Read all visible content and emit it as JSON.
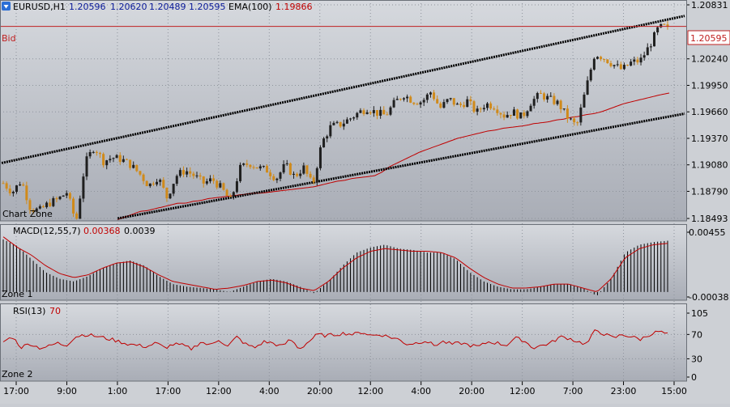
{
  "colors": {
    "panel_bg_top": "#d6d9de",
    "panel_bg_bottom": "#a9adb6",
    "grid": "#8e939c",
    "up_candle": "#1f1f1f",
    "down_candle": "#d08a1a",
    "ema": "#c00000",
    "channel": "#000000",
    "bid_line": "#c02020",
    "macd_bars": "#000000",
    "macd_signal": "#c00000",
    "rsi": "#c00000",
    "text": "#000000",
    "value_blue": "#0a1a9a",
    "value_red": "#c00000"
  },
  "header": {
    "symbol": "EURUSD,H1",
    "open": "1.20596",
    "high": "1.20620",
    "low": "1.20489",
    "close": "1.20595",
    "ema_label": "EMA(100)",
    "ema_value": "1.19866",
    "icon": "arrow-down-icon"
  },
  "bid": {
    "label": "Bid",
    "value": "1.20595",
    "price": 1.20595
  },
  "zones": {
    "main": "Chart Zone",
    "macd": "Zone 1",
    "rsi": "Zone 2"
  },
  "macd_header": {
    "label": "MACD(12,55,7)",
    "value1": "0.00368",
    "value2": "0.0039"
  },
  "rsi_header": {
    "label": "RSI(13)",
    "value": "70"
  },
  "chart_data": [
    {
      "type": "candlestick",
      "title": "EURUSD,H1",
      "ylim": [
        1.18493,
        1.20831
      ],
      "yticks": [
        "1.20831",
        "1.20240",
        "1.19950",
        "1.19660",
        "1.19370",
        "1.19080",
        "1.18790",
        "1.18493"
      ],
      "xticks": [
        "17:00",
        "9:00",
        "1:00",
        "17:00",
        "12:00",
        "4:00",
        "20:00",
        "12:00",
        "4:00",
        "20:00",
        "12:00",
        "7:00",
        "23:00",
        "15:00"
      ],
      "price_path": [
        1.1888,
        1.1878,
        1.1891,
        1.186,
        1.1858,
        1.1866,
        1.187,
        1.1878,
        1.1845,
        1.191,
        1.1928,
        1.1912,
        1.1916,
        1.1914,
        1.1908,
        1.1898,
        1.1885,
        1.1895,
        1.1872,
        1.1896,
        1.1902,
        1.1896,
        1.1888,
        1.1892,
        1.1882,
        1.1868,
        1.1904,
        1.191,
        1.1905,
        1.1902,
        1.1893,
        1.1908,
        1.1895,
        1.1905,
        1.1885,
        1.1932,
        1.195,
        1.1952,
        1.1958,
        1.1965,
        1.197,
        1.1965,
        1.1962,
        1.1976,
        1.1985,
        1.1978,
        1.1977,
        1.1988,
        1.197,
        1.198,
        1.1972,
        1.1978,
        1.1965,
        1.1975,
        1.1972,
        1.1962,
        1.1966,
        1.196,
        1.1977,
        1.1985,
        1.198,
        1.1975,
        1.196,
        1.195,
        1.199,
        1.203,
        1.2025,
        1.2018,
        1.2012,
        1.202,
        1.2022,
        1.2038,
        1.2058,
        1.20595
      ],
      "ema100": [
        1.1848,
        1.1851,
        1.1854,
        1.1857,
        1.1858,
        1.186,
        1.1862,
        1.1864,
        1.1866,
        1.1866,
        1.1868,
        1.1869,
        1.1871,
        1.1872,
        1.1873,
        1.1874,
        1.1875,
        1.1876,
        1.1877,
        1.1877,
        1.1878,
        1.1879,
        1.188,
        1.1881,
        1.1882,
        1.1883,
        1.1884,
        1.1886,
        1.1888,
        1.189,
        1.1891,
        1.1893,
        1.1894,
        1.1895,
        1.1896,
        1.19,
        1.1906,
        1.191,
        1.1914,
        1.1918,
        1.1922,
        1.1925,
        1.1928,
        1.1931,
        1.1934,
        1.1937,
        1.1939,
        1.1941,
        1.1943,
        1.1945,
        1.1946,
        1.1948,
        1.1949,
        1.195,
        1.1951,
        1.1953,
        1.1954,
        1.1955,
        1.1957,
        1.1958,
        1.196,
        1.1961,
        1.1963,
        1.1964,
        1.1966,
        1.1969,
        1.1972,
        1.1975,
        1.1977,
        1.1979,
        1.1981,
        1.1983,
        1.1985,
        1.19866
      ],
      "channel_upper": [
        [
          0,
          1.191
        ],
        [
          1,
          1.2071
        ]
      ],
      "channel_lower": [
        [
          0.17,
          1.18493
        ],
        [
          1,
          1.1964
        ]
      ]
    },
    {
      "type": "bar",
      "title": "MACD(12,55,7)",
      "ylim": [
        -0.00038,
        0.00455
      ],
      "yticks": [
        "0.00455",
        "-0.00038"
      ],
      "hist_path": [
        0.004,
        0.0035,
        0.0025,
        0.0015,
        0.001,
        0.0008,
        0.0012,
        0.0018,
        0.0022,
        0.0024,
        0.002,
        0.0012,
        0.0006,
        0.0004,
        0.0003,
        0.0002,
        0.0,
        0.0004,
        0.0008,
        0.001,
        0.0008,
        0.0004,
        -0.0001,
        0.0008,
        0.002,
        0.003,
        0.0034,
        0.0036,
        0.0033,
        0.0032,
        0.003,
        0.003,
        0.0025,
        0.0015,
        0.0008,
        0.0004,
        0.0002,
        0.0002,
        0.0004,
        0.0006,
        0.0006,
        0.0003,
        -0.0003,
        0.001,
        0.003,
        0.0036,
        0.0038,
        0.0039
      ],
      "signal_path": [
        0.0042,
        0.0034,
        0.0028,
        0.002,
        0.0014,
        0.0011,
        0.0013,
        0.0018,
        0.0022,
        0.0023,
        0.0019,
        0.0013,
        0.0008,
        0.0006,
        0.0004,
        0.0002,
        0.0003,
        0.0005,
        0.0008,
        0.0009,
        0.0007,
        0.0003,
        0.0001,
        0.0008,
        0.0018,
        0.0026,
        0.0031,
        0.0033,
        0.0032,
        0.0031,
        0.0031,
        0.003,
        0.0026,
        0.0018,
        0.0011,
        0.0006,
        0.0003,
        0.0003,
        0.0004,
        0.0006,
        0.0006,
        0.0003,
        0.0,
        0.001,
        0.0026,
        0.0033,
        0.0036,
        0.0037
      ]
    },
    {
      "type": "line",
      "title": "RSI(13)",
      "ylim": [
        0,
        105
      ],
      "yticks": [
        "105",
        "70",
        "30",
        "0"
      ],
      "levels": [
        70,
        30
      ],
      "values": [
        58,
        66,
        49,
        55,
        48,
        50,
        56,
        52,
        66,
        70,
        68,
        65,
        62,
        58,
        54,
        52,
        50,
        56,
        48,
        54,
        52,
        46,
        58,
        52,
        62,
        50,
        66,
        54,
        48,
        58,
        56,
        50,
        62,
        46,
        58,
        70,
        68,
        70,
        72,
        70,
        74,
        68,
        70,
        66,
        62,
        54,
        56,
        60,
        52,
        58,
        54,
        56,
        52,
        50,
        58,
        56,
        52,
        64,
        60,
        48,
        52,
        56,
        66,
        64,
        58,
        54,
        78,
        70,
        64,
        70,
        66,
        62,
        70,
        75,
        70
      ]
    }
  ]
}
